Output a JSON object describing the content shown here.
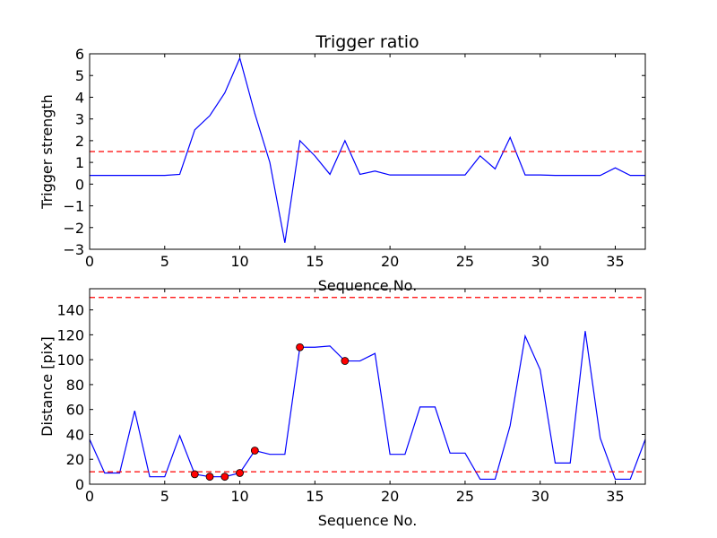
{
  "chart_data": [
    {
      "type": "line",
      "title": "Trigger ratio",
      "xlabel": "Sequence No.",
      "ylabel": "Trigger strength",
      "xlim": [
        0,
        37
      ],
      "ylim": [
        -3,
        6
      ],
      "xticks": [
        0,
        5,
        10,
        15,
        20,
        25,
        30,
        35
      ],
      "yticks": [
        -3,
        -2,
        -1,
        0,
        1,
        2,
        3,
        4,
        5,
        6
      ],
      "ytick_labels": [
        "−3",
        "−2",
        "−1",
        "0",
        "1",
        "2",
        "3",
        "4",
        "5",
        "6"
      ],
      "grid": false,
      "series": [
        {
          "color": "#0000ff",
          "x": [
            0,
            1,
            2,
            3,
            4,
            5,
            6,
            7,
            8,
            9,
            10,
            11,
            12,
            13,
            14,
            15,
            16,
            17,
            18,
            19,
            20,
            21,
            22,
            23,
            24,
            25,
            26,
            27,
            28,
            29,
            30,
            31,
            32,
            33,
            34,
            35,
            36,
            37
          ],
          "values": [
            0.4,
            0.4,
            0.4,
            0.4,
            0.4,
            0.4,
            0.45,
            2.5,
            3.15,
            4.2,
            5.8,
            3.25,
            1.0,
            -2.7,
            2.0,
            1.3,
            0.45,
            2.0,
            0.45,
            0.6,
            0.42,
            0.42,
            0.42,
            0.42,
            0.42,
            0.42,
            1.3,
            0.7,
            2.15,
            0.42,
            0.42,
            0.4,
            0.4,
            0.4,
            0.4,
            0.75,
            0.4,
            0.4
          ]
        }
      ],
      "hlines": [
        {
          "y": 1.5,
          "color": "#ff0000",
          "style": "dashed"
        }
      ]
    },
    {
      "type": "line",
      "title": "",
      "xlabel": "Sequence No.",
      "ylabel": "Distance [pix]",
      "xlim": [
        0,
        37
      ],
      "ylim": [
        0,
        157
      ],
      "xticks": [
        0,
        5,
        10,
        15,
        20,
        25,
        30,
        35
      ],
      "yticks": [
        0,
        20,
        40,
        60,
        80,
        100,
        120,
        140
      ],
      "ytick_labels": [
        "0",
        "20",
        "40",
        "60",
        "80",
        "100",
        "120",
        "140"
      ],
      "grid": false,
      "series": [
        {
          "color": "#0000ff",
          "x": [
            0,
            1,
            2,
            3,
            4,
            5,
            6,
            7,
            8,
            9,
            10,
            11,
            12,
            13,
            14,
            15,
            16,
            17,
            18,
            19,
            20,
            21,
            22,
            23,
            24,
            25,
            26,
            27,
            28,
            29,
            30,
            31,
            32,
            33,
            34,
            35,
            36,
            37
          ],
          "values": [
            36,
            9,
            9,
            59,
            6,
            6,
            39,
            8,
            6,
            6,
            9,
            27,
            24,
            24,
            110,
            110,
            111,
            99,
            99,
            105,
            24,
            24,
            62,
            62,
            25,
            25,
            4,
            4,
            47,
            119,
            92,
            17,
            17,
            123,
            37,
            4,
            4,
            36
          ]
        }
      ],
      "markers": {
        "color": "#ff0000",
        "x": [
          7,
          8,
          9,
          10,
          11,
          14,
          17
        ],
        "values": [
          8,
          6,
          6,
          9,
          27,
          110,
          99
        ]
      },
      "hlines": [
        {
          "y": 150,
          "color": "#ff0000",
          "style": "dashed"
        },
        {
          "y": 10,
          "color": "#ff0000",
          "style": "dashed"
        }
      ]
    }
  ]
}
